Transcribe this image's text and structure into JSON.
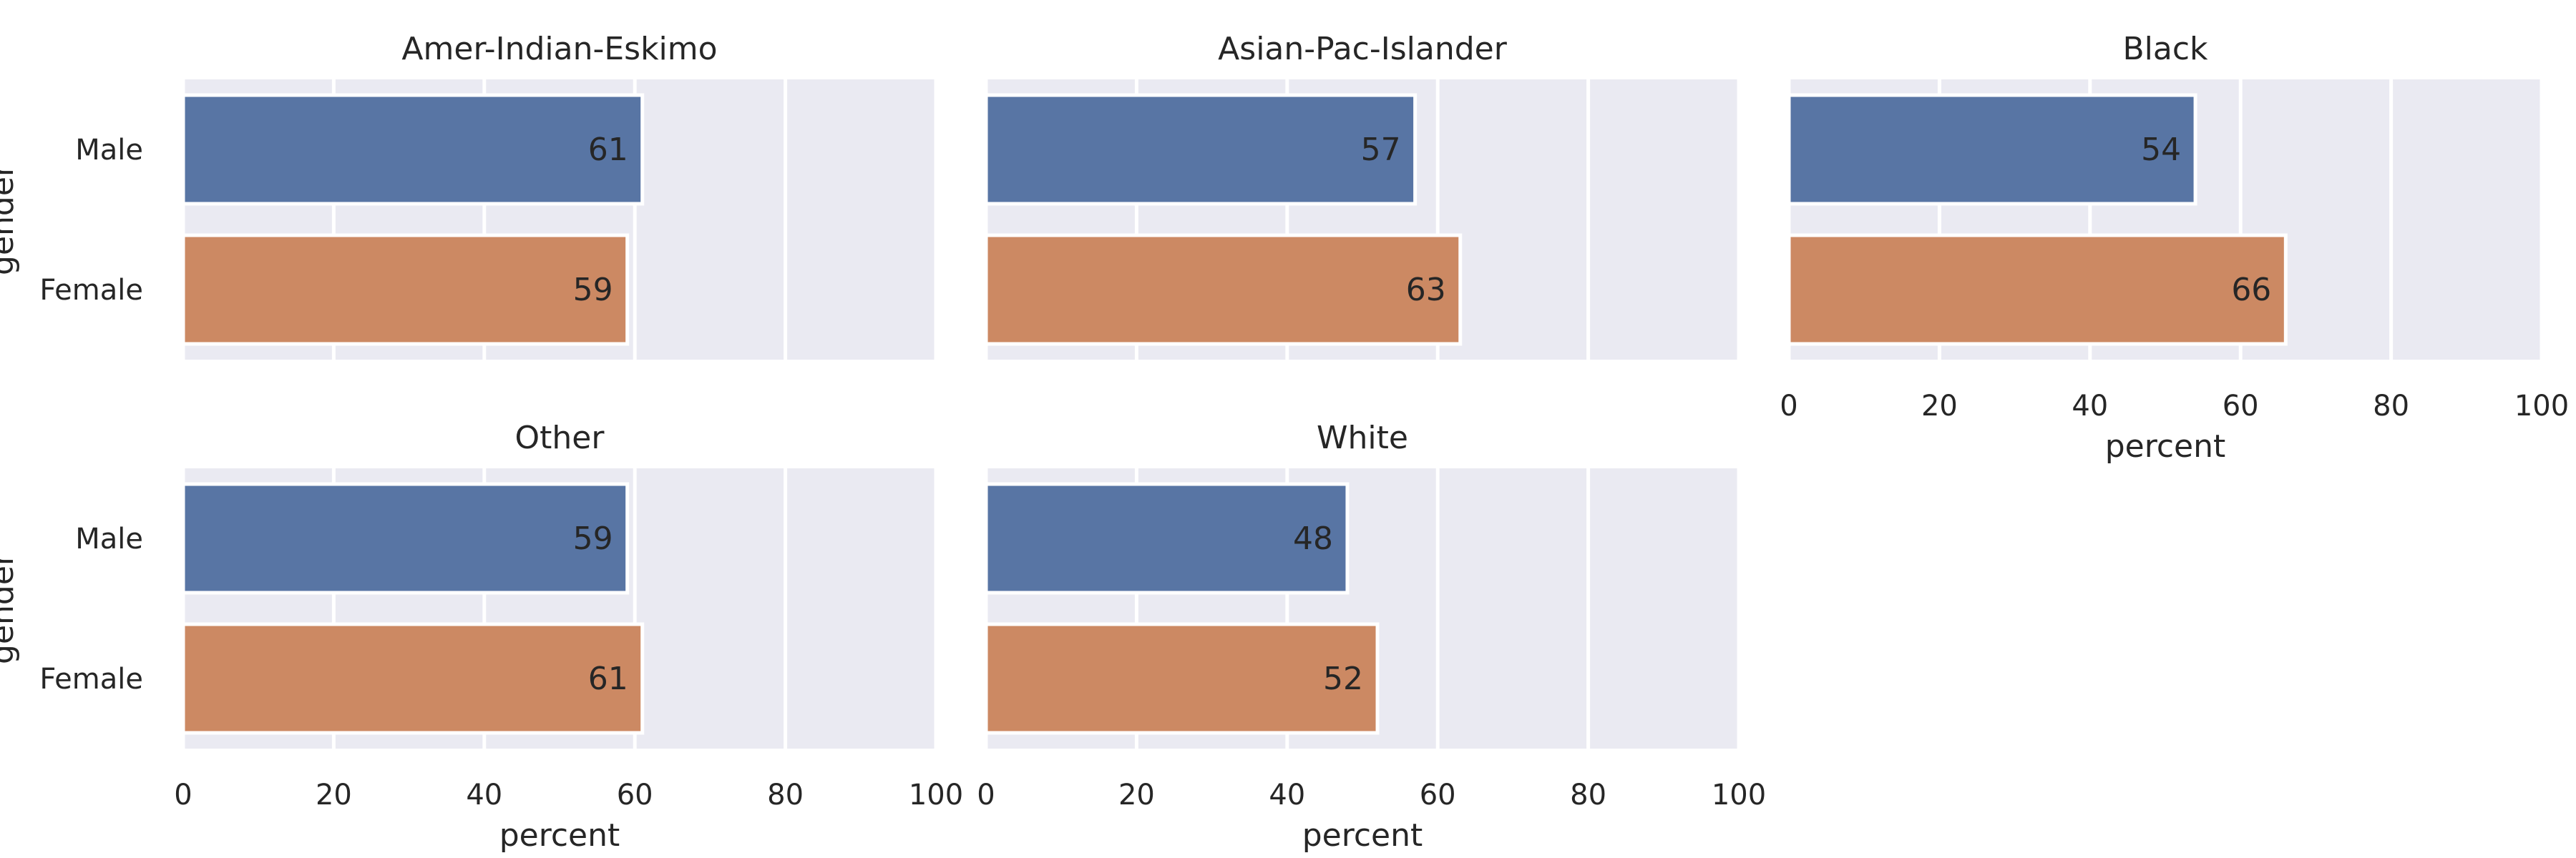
{
  "chart_data": {
    "type": "bar",
    "orientation": "horizontal",
    "facet_by": "race",
    "categories": [
      "Male",
      "Female"
    ],
    "category_axis_label": "gender",
    "value_axis_label": "percent",
    "xlim": [
      0,
      100
    ],
    "x_ticks": [
      "0",
      "20",
      "40",
      "60",
      "80",
      "100"
    ],
    "grid": true,
    "colors": {
      "Male": "#5875a4",
      "Female": "#cc8963"
    },
    "panels": [
      {
        "title": "Amer-Indian-Eskimo",
        "values": [
          61,
          59
        ]
      },
      {
        "title": "Asian-Pac-Islander",
        "values": [
          57,
          63
        ]
      },
      {
        "title": "Black",
        "values": [
          54,
          66
        ]
      },
      {
        "title": "Other",
        "values": [
          59,
          61
        ]
      },
      {
        "title": "White",
        "values": [
          48,
          52
        ]
      }
    ]
  }
}
